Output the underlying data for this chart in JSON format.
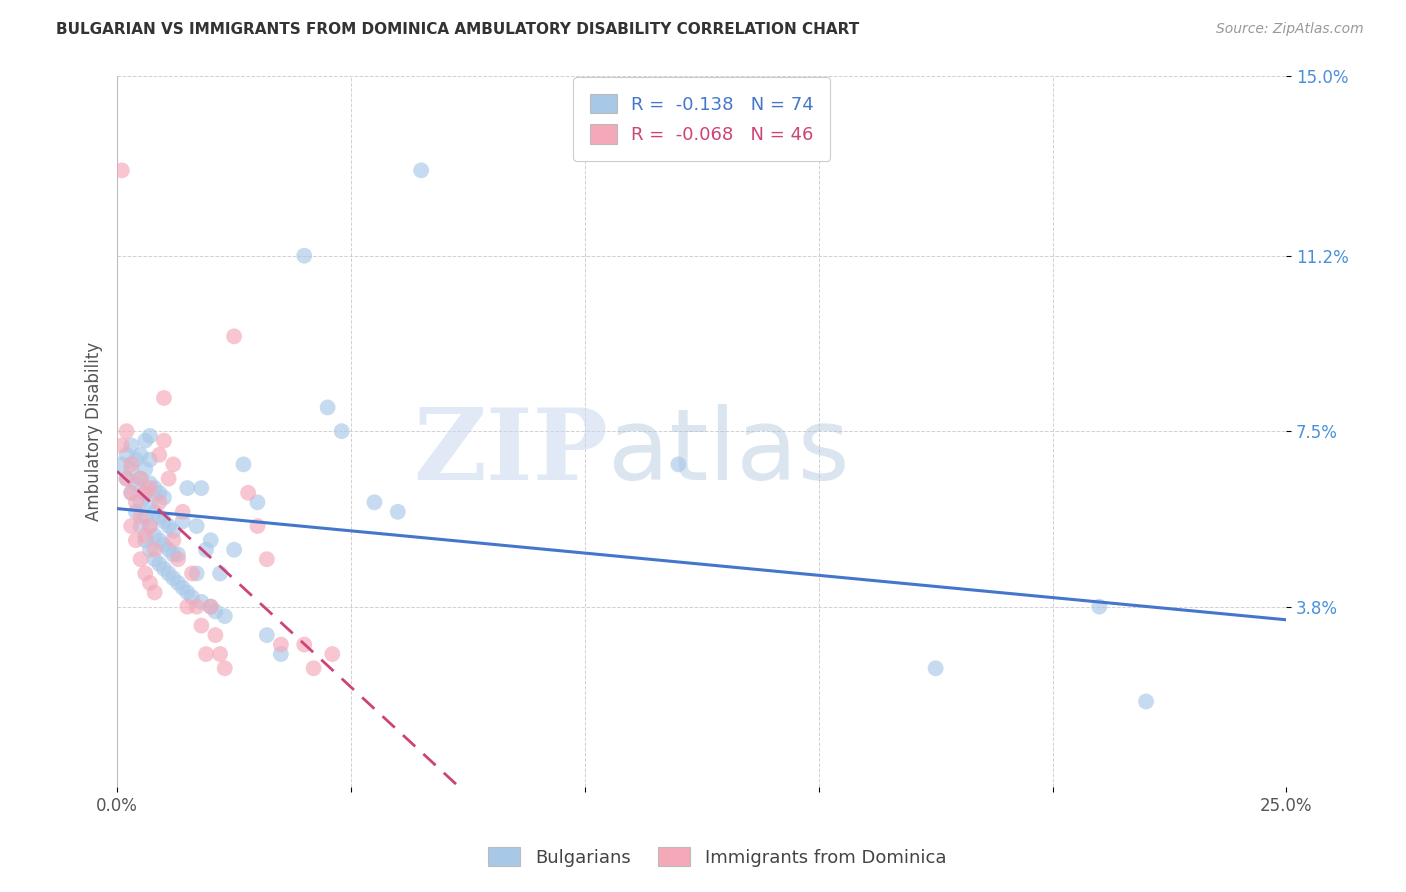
{
  "title": "BULGARIAN VS IMMIGRANTS FROM DOMINICA AMBULATORY DISABILITY CORRELATION CHART",
  "source": "Source: ZipAtlas.com",
  "ylabel": "Ambulatory Disability",
  "xlim": [
    0.0,
    0.25
  ],
  "ylim": [
    0.0,
    0.15
  ],
  "ytick_positions": [
    0.038,
    0.075,
    0.112,
    0.15
  ],
  "ytick_labels": [
    "3.8%",
    "7.5%",
    "11.2%",
    "15.0%"
  ],
  "legend_blue_r": "-0.138",
  "legend_blue_n": "74",
  "legend_pink_r": "-0.068",
  "legend_pink_n": "46",
  "legend_label_blue": "Bulgarians",
  "legend_label_pink": "Immigrants from Dominica",
  "blue_color": "#a8c8e8",
  "pink_color": "#f4a8b8",
  "blue_line_color": "#4477cc",
  "pink_line_color": "#cc4477",
  "blue_x": [
    0.001,
    0.002,
    0.002,
    0.003,
    0.003,
    0.003,
    0.004,
    0.004,
    0.004,
    0.005,
    0.005,
    0.005,
    0.005,
    0.006,
    0.006,
    0.006,
    0.006,
    0.006,
    0.007,
    0.007,
    0.007,
    0.007,
    0.007,
    0.007,
    0.008,
    0.008,
    0.008,
    0.008,
    0.009,
    0.009,
    0.009,
    0.009,
    0.01,
    0.01,
    0.01,
    0.01,
    0.011,
    0.011,
    0.011,
    0.012,
    0.012,
    0.012,
    0.013,
    0.013,
    0.014,
    0.014,
    0.015,
    0.015,
    0.016,
    0.017,
    0.017,
    0.018,
    0.018,
    0.019,
    0.02,
    0.02,
    0.021,
    0.022,
    0.023,
    0.025,
    0.027,
    0.03,
    0.032,
    0.035,
    0.04,
    0.045,
    0.048,
    0.055,
    0.06,
    0.065,
    0.12,
    0.175,
    0.21,
    0.22
  ],
  "blue_y": [
    0.068,
    0.065,
    0.07,
    0.062,
    0.067,
    0.072,
    0.058,
    0.064,
    0.069,
    0.055,
    0.06,
    0.065,
    0.07,
    0.052,
    0.057,
    0.062,
    0.067,
    0.073,
    0.05,
    0.055,
    0.06,
    0.064,
    0.069,
    0.074,
    0.048,
    0.053,
    0.058,
    0.063,
    0.047,
    0.052,
    0.057,
    0.062,
    0.046,
    0.051,
    0.056,
    0.061,
    0.045,
    0.05,
    0.055,
    0.044,
    0.049,
    0.054,
    0.043,
    0.049,
    0.042,
    0.056,
    0.041,
    0.063,
    0.04,
    0.045,
    0.055,
    0.039,
    0.063,
    0.05,
    0.038,
    0.052,
    0.037,
    0.045,
    0.036,
    0.05,
    0.068,
    0.06,
    0.032,
    0.028,
    0.112,
    0.08,
    0.075,
    0.06,
    0.058,
    0.13,
    0.068,
    0.025,
    0.038,
    0.018
  ],
  "pink_x": [
    0.001,
    0.001,
    0.002,
    0.002,
    0.003,
    0.003,
    0.003,
    0.004,
    0.004,
    0.005,
    0.005,
    0.005,
    0.006,
    0.006,
    0.006,
    0.007,
    0.007,
    0.007,
    0.008,
    0.008,
    0.009,
    0.009,
    0.01,
    0.01,
    0.011,
    0.012,
    0.012,
    0.013,
    0.014,
    0.015,
    0.016,
    0.017,
    0.018,
    0.019,
    0.02,
    0.021,
    0.022,
    0.023,
    0.025,
    0.028,
    0.03,
    0.032,
    0.035,
    0.04,
    0.042,
    0.046
  ],
  "pink_y": [
    0.072,
    0.13,
    0.065,
    0.075,
    0.055,
    0.062,
    0.068,
    0.052,
    0.06,
    0.048,
    0.057,
    0.065,
    0.045,
    0.053,
    0.062,
    0.043,
    0.055,
    0.063,
    0.041,
    0.05,
    0.07,
    0.06,
    0.073,
    0.082,
    0.065,
    0.052,
    0.068,
    0.048,
    0.058,
    0.038,
    0.045,
    0.038,
    0.034,
    0.028,
    0.038,
    0.032,
    0.028,
    0.025,
    0.095,
    0.062,
    0.055,
    0.048,
    0.03,
    0.03,
    0.025,
    0.028
  ]
}
